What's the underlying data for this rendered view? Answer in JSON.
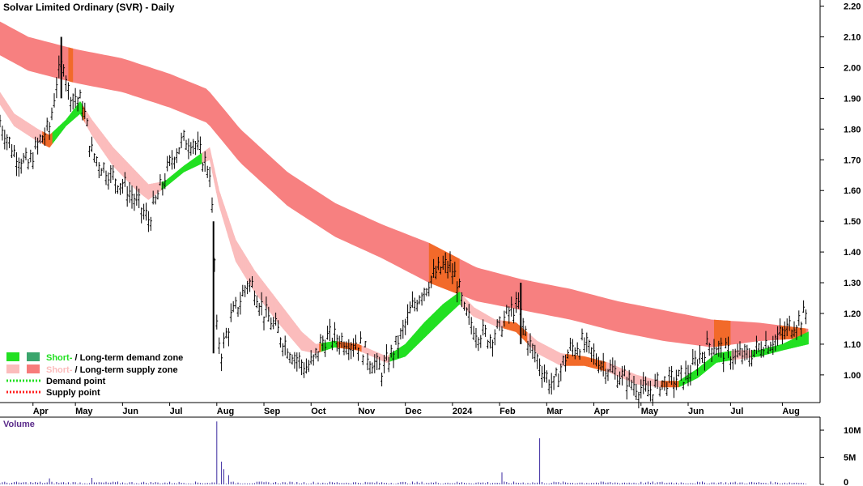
{
  "chart_data": {
    "type": "candlestick",
    "title": "Solvar Limited Ordinary (SVR) - Daily",
    "price_axis": {
      "ylim": [
        0.91,
        2.22
      ],
      "ticks": [
        "2.20",
        "2.10",
        "2.00",
        "1.90",
        "1.80",
        "1.70",
        "1.60",
        "1.50",
        "1.40",
        "1.30",
        "1.20",
        "1.10",
        "1.00"
      ]
    },
    "x_ticks": [
      "Apr",
      "May",
      "Jun",
      "Jul",
      "Aug",
      "Sep",
      "Oct",
      "Nov",
      "Dec",
      "2024",
      "Feb",
      "Mar",
      "Apr",
      "May",
      "Jun",
      "Jul",
      "Aug"
    ],
    "x_tick_months": [
      0.1,
      1.0,
      2.0,
      3.0,
      4.0,
      5.0,
      6.0,
      7.0,
      8.0,
      9.0,
      10.0,
      11.0,
      12.0,
      13.0,
      14.0,
      14.9,
      16.0
    ],
    "x_range": [
      -0.6,
      16.8
    ],
    "price_path": [
      [
        -0.6,
        1.82
      ],
      [
        -0.3,
        1.72
      ],
      [
        0.0,
        1.68
      ],
      [
        0.25,
        1.76
      ],
      [
        0.45,
        1.8
      ],
      [
        0.6,
        1.95
      ],
      [
        0.75,
        2.02
      ],
      [
        0.85,
        1.92
      ],
      [
        1.0,
        1.9
      ],
      [
        1.15,
        1.88
      ],
      [
        1.35,
        1.72
      ],
      [
        1.55,
        1.68
      ],
      [
        1.8,
        1.64
      ],
      [
        2.0,
        1.62
      ],
      [
        2.3,
        1.56
      ],
      [
        2.55,
        1.5
      ],
      [
        2.7,
        1.56
      ],
      [
        2.9,
        1.64
      ],
      [
        3.1,
        1.72
      ],
      [
        3.3,
        1.76
      ],
      [
        3.5,
        1.76
      ],
      [
        3.7,
        1.7
      ],
      [
        3.85,
        1.66
      ],
      [
        3.93,
        1.45
      ],
      [
        4.0,
        1.14
      ],
      [
        4.1,
        1.07
      ],
      [
        4.3,
        1.18
      ],
      [
        4.5,
        1.24
      ],
      [
        4.65,
        1.3
      ],
      [
        4.8,
        1.28
      ],
      [
        5.0,
        1.2
      ],
      [
        5.2,
        1.16
      ],
      [
        5.45,
        1.1
      ],
      [
        5.7,
        1.05
      ],
      [
        5.9,
        1.02
      ],
      [
        6.05,
        1.04
      ],
      [
        6.2,
        1.1
      ],
      [
        6.4,
        1.12
      ],
      [
        6.7,
        1.11
      ],
      [
        7.0,
        1.1
      ],
      [
        7.3,
        1.04
      ],
      [
        7.5,
        1.01
      ],
      [
        7.7,
        1.06
      ],
      [
        7.9,
        1.12
      ],
      [
        8.1,
        1.2
      ],
      [
        8.3,
        1.26
      ],
      [
        8.55,
        1.31
      ],
      [
        8.8,
        1.35
      ],
      [
        8.95,
        1.35
      ],
      [
        9.1,
        1.3
      ],
      [
        9.25,
        1.2
      ],
      [
        9.5,
        1.14
      ],
      [
        9.8,
        1.12
      ],
      [
        10.0,
        1.15
      ],
      [
        10.2,
        1.2
      ],
      [
        10.4,
        1.22
      ],
      [
        10.5,
        1.16
      ],
      [
        10.65,
        1.09
      ],
      [
        10.8,
        1.05
      ],
      [
        11.0,
        0.99
      ],
      [
        11.15,
        0.96
      ],
      [
        11.3,
        1.02
      ],
      [
        11.5,
        1.08
      ],
      [
        11.75,
        1.1
      ],
      [
        12.0,
        1.06
      ],
      [
        12.3,
        1.02
      ],
      [
        12.6,
        0.99
      ],
      [
        12.9,
        0.96
      ],
      [
        13.15,
        0.94
      ],
      [
        13.4,
        0.97
      ],
      [
        13.7,
        0.98
      ],
      [
        13.9,
        0.99
      ],
      [
        14.1,
        1.02
      ],
      [
        14.3,
        1.07
      ],
      [
        14.5,
        1.1
      ],
      [
        14.75,
        1.07
      ],
      [
        15.0,
        1.06
      ],
      [
        15.3,
        1.06
      ],
      [
        15.6,
        1.1
      ],
      [
        15.8,
        1.11
      ],
      [
        16.0,
        1.13
      ],
      [
        16.2,
        1.16
      ],
      [
        16.4,
        1.18
      ],
      [
        16.55,
        1.2
      ]
    ],
    "long_term_zone": [
      [
        -0.6,
        2.15,
        2.04
      ],
      [
        0.0,
        2.1,
        1.99
      ],
      [
        1.0,
        2.06,
        1.95
      ],
      [
        2.0,
        2.03,
        1.92
      ],
      [
        3.0,
        1.98,
        1.87
      ],
      [
        3.8,
        1.93,
        1.82
      ],
      [
        4.5,
        1.8,
        1.69
      ],
      [
        5.5,
        1.66,
        1.55
      ],
      [
        6.5,
        1.56,
        1.45
      ],
      [
        7.5,
        1.49,
        1.38
      ],
      [
        8.5,
        1.43,
        1.3
      ],
      [
        9.5,
        1.35,
        1.24
      ],
      [
        10.5,
        1.31,
        1.21
      ],
      [
        11.5,
        1.28,
        1.18
      ],
      [
        12.5,
        1.24,
        1.14
      ],
      [
        13.5,
        1.21,
        1.11
      ],
      [
        14.5,
        1.18,
        1.09
      ],
      [
        15.5,
        1.17,
        1.11
      ],
      [
        16.55,
        1.15,
        1.12
      ]
    ],
    "long_term_zone_highlights": [
      [
        0.85,
        0.95
      ],
      [
        8.5,
        9.15
      ],
      [
        14.55,
        14.9
      ],
      [
        15.95,
        16.5
      ]
    ],
    "short_term_zone": [
      [
        -0.6,
        1.92,
        1.88
      ],
      [
        -0.3,
        1.85,
        1.81
      ],
      [
        0.2,
        1.8,
        1.76
      ],
      [
        0.45,
        1.78,
        1.74
      ],
      [
        0.8,
        1.83,
        1.81
      ],
      [
        1.1,
        1.89,
        1.85
      ],
      [
        1.35,
        1.83,
        1.78
      ],
      [
        1.8,
        1.74,
        1.68
      ],
      [
        2.3,
        1.66,
        1.6
      ],
      [
        2.55,
        1.62,
        1.57
      ],
      [
        2.9,
        1.63,
        1.61
      ],
      [
        3.3,
        1.68,
        1.66
      ],
      [
        3.85,
        1.74,
        1.7
      ],
      [
        4.05,
        1.6,
        1.55
      ],
      [
        4.4,
        1.44,
        1.37
      ],
      [
        4.8,
        1.34,
        1.27
      ],
      [
        5.3,
        1.24,
        1.17
      ],
      [
        5.8,
        1.14,
        1.08
      ],
      [
        6.1,
        1.1,
        1.07
      ],
      [
        6.5,
        1.11,
        1.09
      ],
      [
        7.0,
        1.1,
        1.08
      ],
      [
        7.6,
        1.06,
        1.04
      ],
      [
        8.0,
        1.1,
        1.06
      ],
      [
        8.4,
        1.17,
        1.12
      ],
      [
        8.8,
        1.23,
        1.18
      ],
      [
        9.15,
        1.27,
        1.23
      ],
      [
        9.45,
        1.22,
        1.19
      ],
      [
        9.9,
        1.18,
        1.16
      ],
      [
        10.35,
        1.17,
        1.14
      ],
      [
        10.8,
        1.11,
        1.07
      ],
      [
        11.3,
        1.07,
        1.03
      ],
      [
        11.8,
        1.06,
        1.03
      ],
      [
        12.3,
        1.04,
        1.01
      ],
      [
        12.9,
        1.0,
        0.97
      ],
      [
        13.4,
        0.98,
        0.96
      ],
      [
        13.8,
        0.98,
        0.96
      ],
      [
        14.2,
        1.02,
        0.99
      ],
      [
        14.6,
        1.07,
        1.04
      ],
      [
        15.0,
        1.08,
        1.05
      ],
      [
        15.5,
        1.08,
        1.06
      ],
      [
        16.0,
        1.1,
        1.08
      ],
      [
        16.55,
        1.14,
        1.1
      ]
    ],
    "volume": {
      "title": "Volume",
      "ticks": [
        "10M",
        "5M",
        "0"
      ],
      "ymax": 11.5,
      "base_level": 0.35,
      "spikes": [
        [
          4.02,
          11.6
        ],
        [
          4.08,
          4.2
        ],
        [
          4.15,
          2.8
        ],
        [
          4.25,
          1.7
        ],
        [
          0.45,
          1.1
        ],
        [
          1.35,
          1.2
        ],
        [
          10.05,
          2.2
        ],
        [
          10.85,
          8.5
        ]
      ]
    },
    "legend": [
      {
        "label_short": "Short-",
        "sep": " / ",
        "label_long": "Long-term demand zone",
        "short_color": "#22e022",
        "long_color": "#3aa56c"
      },
      {
        "label_short": "Short-",
        "sep": " / ",
        "label_long": "Long-term supply zone",
        "short_color": "#fbbcbc",
        "long_color": "#f77b7b"
      },
      {
        "label": "Demand point",
        "color": "#22e022"
      },
      {
        "label": "Supply point",
        "color": "#ff2020"
      }
    ],
    "colors": {
      "long_zone": "#f78080",
      "zone_highlight": "#f26a2a",
      "short_supply": "#fbbcbc",
      "short_demand": "#22e022",
      "short_supply_highlight": "#f26a2a",
      "candle": "#000000",
      "volume_bar": "#3b2aa0",
      "grid": "#000000"
    }
  }
}
